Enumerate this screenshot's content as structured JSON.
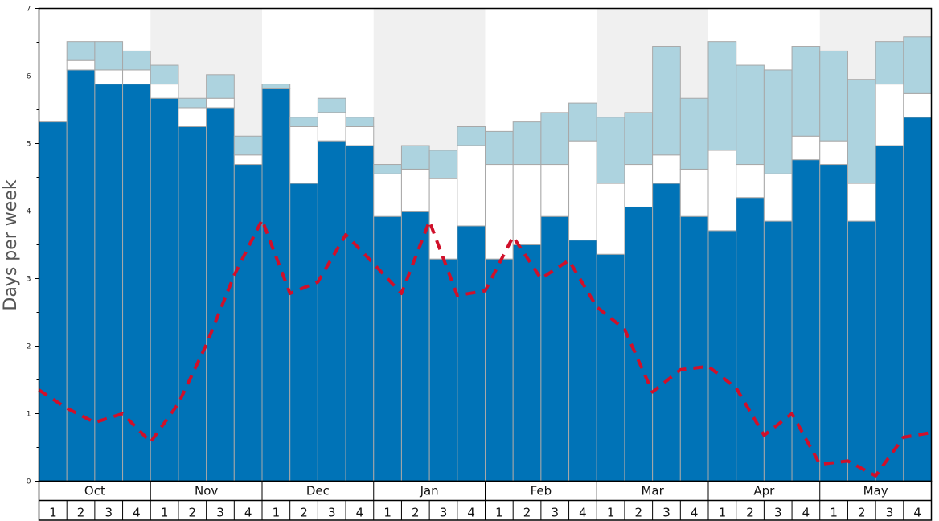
{
  "chart_data": {
    "type": "bar",
    "ylabel": "Days per week",
    "ylim": [
      0,
      7
    ],
    "y_ticks": [
      0,
      1,
      2,
      3,
      4,
      5,
      6,
      7
    ],
    "months": [
      "Oct",
      "Nov",
      "Dec",
      "Jan",
      "Feb",
      "Mar",
      "Apr",
      "May"
    ],
    "weeks": [
      "1",
      "2",
      "3",
      "4"
    ],
    "colors": {
      "dark": "#0073b7",
      "white": "#ffffff",
      "light": "#add3df",
      "line": "#d0102a",
      "shade": "#f0f0f0",
      "bar_edge": "#a8a8a8"
    },
    "series": [
      {
        "name": "dark",
        "values": [
          5.32,
          6.09,
          5.88,
          5.88,
          5.67,
          5.25,
          5.53,
          4.69,
          5.81,
          4.41,
          5.04,
          4.97,
          3.92,
          3.99,
          3.29,
          3.78,
          3.29,
          3.5,
          3.92,
          3.57,
          3.36,
          4.06,
          4.41,
          3.92,
          3.71,
          4.2,
          3.85,
          4.76,
          4.69,
          3.85,
          4.97,
          5.39
        ]
      },
      {
        "name": "white",
        "values": [
          0,
          0.14,
          0.21,
          0.21,
          0.21,
          0.28,
          0.14,
          0.14,
          0,
          0.84,
          0.42,
          0.28,
          0.63,
          0.63,
          1.19,
          1.19,
          1.4,
          1.19,
          0.77,
          1.47,
          1.05,
          0.63,
          0.42,
          0.7,
          1.19,
          0.49,
          0.7,
          0.35,
          0.35,
          0.56,
          0.91,
          0.35
        ]
      },
      {
        "name": "light",
        "values": [
          0,
          0.28,
          0.42,
          0.28,
          0.28,
          0.14,
          0.35,
          0.28,
          0.07,
          0.14,
          0.21,
          0.14,
          0.14,
          0.35,
          0.42,
          0.28,
          0.49,
          0.63,
          0.77,
          0.56,
          0.98,
          0.77,
          1.61,
          1.05,
          1.61,
          1.47,
          1.54,
          1.33,
          1.33,
          1.54,
          0.63,
          0.84
        ]
      }
    ],
    "line": {
      "name": "dashed",
      "values": [
        1.35,
        1.08,
        0.87,
        1.0,
        0.58,
        1.15,
        2.02,
        3.05,
        3.87,
        2.78,
        2.95,
        3.65,
        3.22,
        2.78,
        3.85,
        2.75,
        2.82,
        3.62,
        3.0,
        3.27,
        2.58,
        2.25,
        1.32,
        1.65,
        1.7,
        1.38,
        0.68,
        1.0,
        0.25,
        0.3,
        0.08,
        0.65,
        0.72
      ]
    }
  }
}
